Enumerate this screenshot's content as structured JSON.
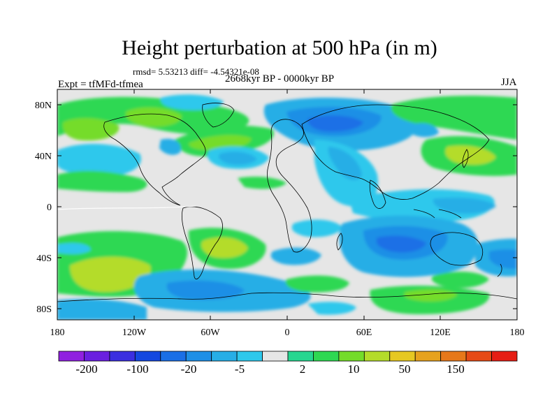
{
  "title": "Height perturbation at 500 hPa (in m)",
  "stats": "rmsd= 5.53213  diff= -4.54321e-08",
  "period": "2668kyr BP - 0000kyr BP",
  "experiment": "Expt = tfMFd-tfmea",
  "season": "JJA",
  "lat_ticks": [
    "80N",
    "40N",
    "0",
    "40S",
    "80S"
  ],
  "lon_ticks": [
    "180",
    "120W",
    "60W",
    "0",
    "60E",
    "120E",
    "180"
  ],
  "colorbar": {
    "labels": [
      "-200",
      "-100",
      "-20",
      "-5",
      "2",
      "10",
      "50",
      "150"
    ],
    "colors": [
      "#9020e0",
      "#6a1fe0",
      "#3b2fe0",
      "#1448e0",
      "#1a6fe6",
      "#1e8fe6",
      "#27aee6",
      "#2ec8ec",
      "#e6e6e6",
      "#27d690",
      "#2ed852",
      "#74dc2a",
      "#b4dc2a",
      "#e6c822",
      "#e6a21e",
      "#e6781a",
      "#e64a16",
      "#e61e14"
    ]
  },
  "chart_data": {
    "type": "heatmap",
    "title": "Height perturbation at 500 hPa (in m)",
    "x_ticks": [
      "180",
      "120W",
      "60W",
      "0",
      "60E",
      "120E",
      "180"
    ],
    "y_ticks": [
      "80N",
      "40N",
      "0",
      "40S",
      "80S"
    ],
    "x_range": [
      -180,
      180
    ],
    "y_range": [
      -90,
      90
    ],
    "colorbar_levels": [
      "-200",
      "-100",
      "-20",
      "-5",
      "2",
      "10",
      "50",
      "150"
    ]
  }
}
